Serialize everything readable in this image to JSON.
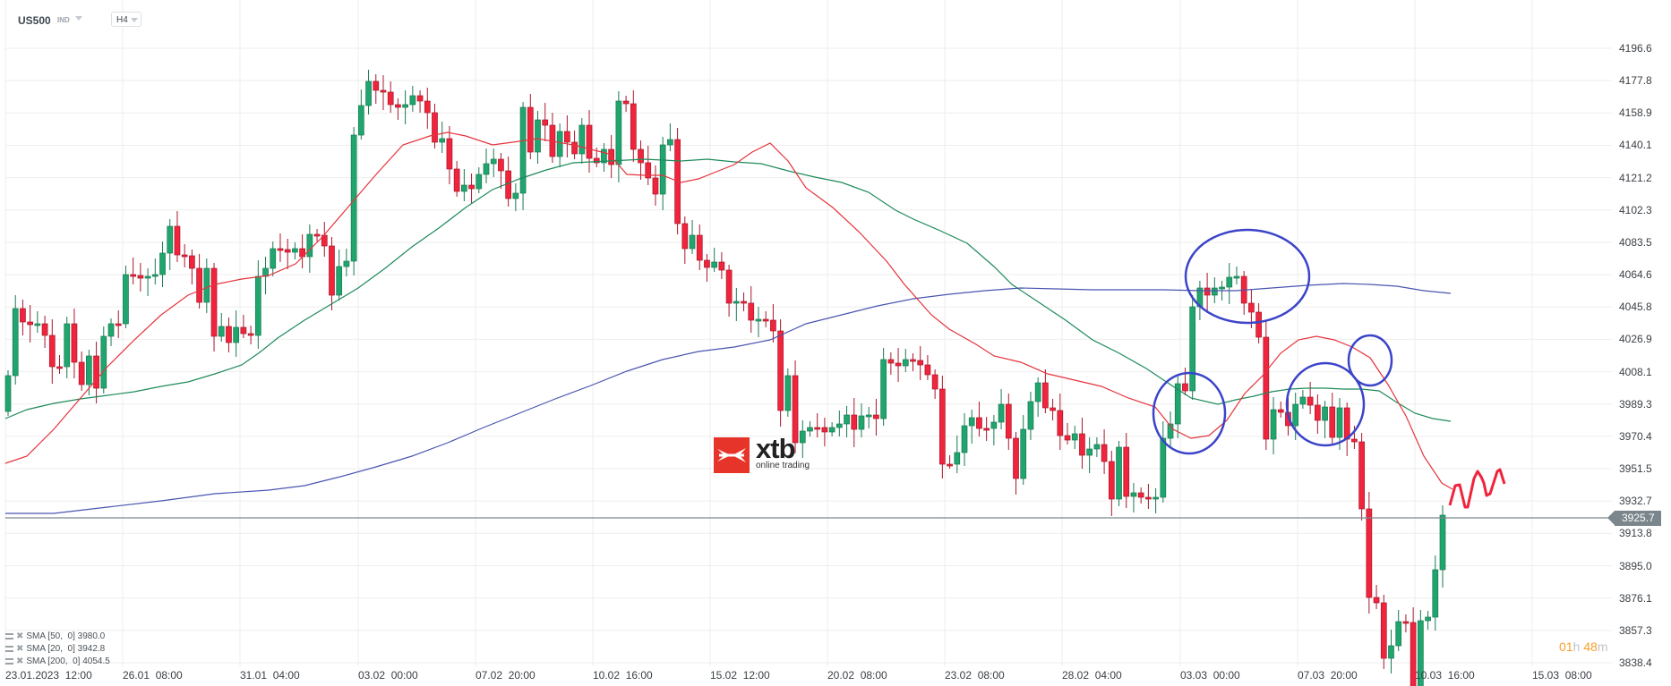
{
  "header": {
    "symbol": "US500",
    "symbol_type": "IND",
    "timeframe": "H4"
  },
  "logo": {
    "main": "xtb",
    "sub": "online trading"
  },
  "indicators": [
    {
      "label": "SMA [50,  0] 3980.0",
      "color": "#1e8a5a"
    },
    {
      "label": "SMA [20,  0] 3942.8",
      "color": "#e5333c"
    },
    {
      "label": "SMA [200,  0] 4054.5",
      "color": "#4a55b0"
    }
  ],
  "timer": {
    "hours": "01",
    "h_unit": "h",
    "minutes": "48",
    "m_unit": "m"
  },
  "current_price": "3925.7",
  "colors": {
    "bull": "#21a56e",
    "bear": "#f0243c",
    "sma20": "#e5333c",
    "sma50": "#1e8a5a",
    "sma200": "#4a55b0",
    "annotation": "#3b44c8",
    "grid": "#eeeeee",
    "price_line": "#7b868c"
  },
  "chart_data": {
    "type": "candlestick",
    "title": "US500 H4",
    "xlabel": "",
    "ylabel": "",
    "ylim": [
      3838.4,
      4196.6
    ],
    "grid": true,
    "y_ticks": [
      "4196.6",
      "4177.8",
      "4158.9",
      "4140.1",
      "4121.2",
      "4102.3",
      "4083.5",
      "4064.6",
      "4045.8",
      "4026.9",
      "4008.1",
      "3989.3",
      "3970.4",
      "3951.5",
      "3932.7",
      "3913.8",
      "3895.0",
      "3876.1",
      "3857.3",
      "3838.4"
    ],
    "x_ticks": [
      "23.01.2023  12:00",
      "26.01  08:00",
      "31.01  04:00",
      "03.02  00:00",
      "07.02  20:00",
      "10.02  16:00",
      "15.02  12:00",
      "20.02  08:00",
      "23.02  08:00",
      "28.02  04:00",
      "03.03  00:00",
      "07.03  20:00",
      "10.03  16:00",
      "15.03  08:00"
    ],
    "last_price": 3925.7,
    "series": [
      {
        "name": "SMA [50, 0]",
        "last": 3980.0
      },
      {
        "name": "SMA [20, 0]",
        "last": 3942.8
      },
      {
        "name": "SMA [200, 0]",
        "last": 4054.5
      }
    ],
    "annotations": [
      "blue ellipse around consolidation near 4064 (03.03–07.03)",
      "blue circle near 3980 (02.03)",
      "blue circle near 3990 (08.03)",
      "blue circle near 4015 (09.03)",
      "red zigzag projection after last candle"
    ]
  }
}
